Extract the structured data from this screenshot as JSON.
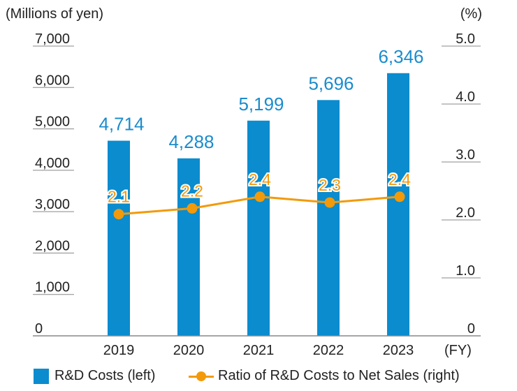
{
  "chart_data": {
    "type": "bar+line",
    "categories": [
      "2019",
      "2020",
      "2021",
      "2022",
      "2023"
    ],
    "series": [
      {
        "name": "R&D Costs (left)",
        "type": "bar",
        "axis": "left",
        "values": [
          4714,
          4288,
          5199,
          5696,
          6346
        ],
        "labels": [
          "4,714",
          "4,288",
          "5,199",
          "5,696",
          "6,346"
        ],
        "color": "#0a8ccf"
      },
      {
        "name": "Ratio of R&D Costs to Net Sales (right)",
        "type": "line",
        "axis": "right",
        "values": [
          2.1,
          2.2,
          2.4,
          2.3,
          2.4
        ],
        "labels": [
          "2.1",
          "2.2",
          "2.4",
          "2.3",
          "2.4"
        ],
        "color": "#f29a0a"
      }
    ],
    "left_axis": {
      "unit_label": "(Millions of yen)",
      "range": [
        0,
        7000
      ],
      "ticks": [
        "0",
        "1,000",
        "2,000",
        "3,000",
        "4,000",
        "5,000",
        "6,000",
        "7,000"
      ]
    },
    "right_axis": {
      "unit_label": "(%)",
      "range": [
        0,
        5.0
      ],
      "ticks": [
        "0",
        "1.0",
        "2.0",
        "3.0",
        "4.0",
        "5.0"
      ]
    },
    "x_unit_label": "(FY)",
    "legend_position": "bottom"
  }
}
